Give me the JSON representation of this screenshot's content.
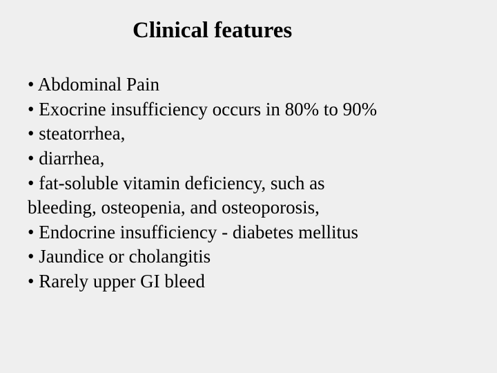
{
  "slide": {
    "title": "Clinical features",
    "title_fontsize": 33,
    "title_fontweight": "bold",
    "content_fontsize": 27,
    "background_color": "#efefef",
    "text_color": "#000000",
    "font_family": "Times New Roman",
    "lines": [
      "• Abdominal Pain",
      "• Exocrine insufficiency occurs in 80% to 90%",
      "• steatorrhea,",
      "• diarrhea,",
      "• fat-soluble vitamin deficiency, such as",
      "bleeding, osteopenia, and osteoporosis,",
      "• Endocrine insufficiency - diabetes mellitus",
      "• Jaundice or cholangitis",
      "• Rarely upper GI bleed"
    ]
  }
}
